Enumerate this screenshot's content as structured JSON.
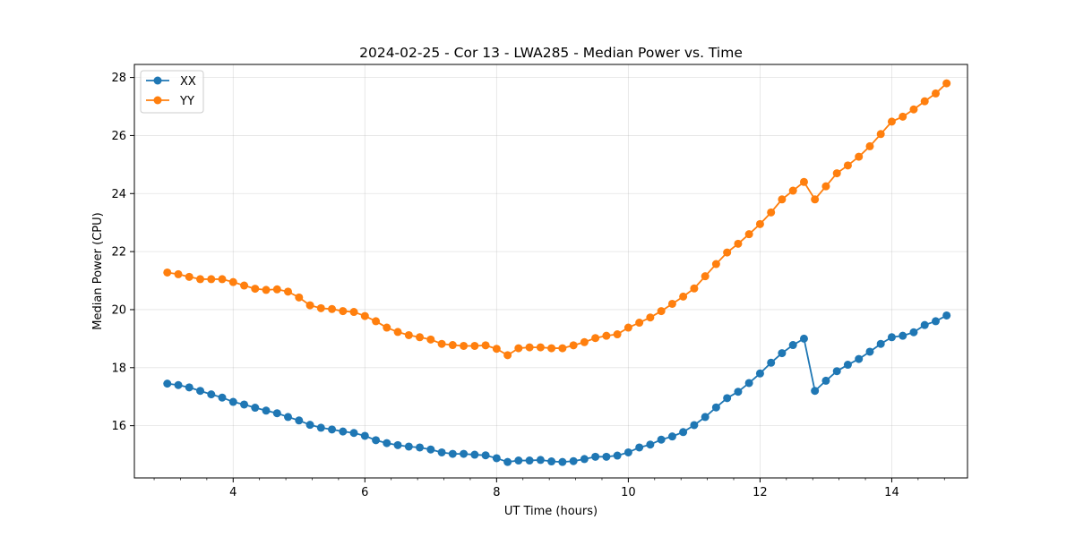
{
  "chart_data": {
    "type": "line",
    "title": "2024-02-25 - Cor 13 - LWA285 - Median Power vs. Time",
    "xlabel": "UT Time (hours)",
    "ylabel": "Median Power (CPU)",
    "xlim": [
      2.5,
      15.15
    ],
    "ylim": [
      14.2,
      28.45
    ],
    "xticks": [
      4,
      6,
      8,
      10,
      12,
      14
    ],
    "xtick_labels": [
      "4",
      "6",
      "8",
      "10",
      "12",
      "14"
    ],
    "yticks": [
      16,
      18,
      20,
      22,
      24,
      26,
      28
    ],
    "ytick_labels": [
      "16",
      "18",
      "20",
      "22",
      "24",
      "26",
      "28"
    ],
    "grid": true,
    "legend_position": "upper-left",
    "x": [
      3.0,
      3.167,
      3.333,
      3.5,
      3.667,
      3.833,
      4.0,
      4.167,
      4.333,
      4.5,
      4.667,
      4.833,
      5.0,
      5.167,
      5.333,
      5.5,
      5.667,
      5.833,
      6.0,
      6.167,
      6.333,
      6.5,
      6.667,
      6.833,
      7.0,
      7.167,
      7.333,
      7.5,
      7.667,
      7.833,
      8.0,
      8.167,
      8.333,
      8.5,
      8.667,
      8.833,
      9.0,
      9.167,
      9.333,
      9.5,
      9.667,
      9.833,
      10.0,
      10.167,
      10.333,
      10.5,
      10.667,
      10.833,
      11.0,
      11.167,
      11.333,
      11.5,
      11.667,
      11.833,
      12.0,
      12.167,
      12.333,
      12.5,
      12.667,
      12.833,
      13.0,
      13.167,
      13.333,
      13.5,
      13.667,
      13.833,
      14.0,
      14.167,
      14.333,
      14.5,
      14.667,
      14.833
    ],
    "series": [
      {
        "name": "XX",
        "color": "#1f77b4",
        "values": [
          17.45,
          17.4,
          17.32,
          17.2,
          17.08,
          16.97,
          16.82,
          16.73,
          16.62,
          16.52,
          16.43,
          16.3,
          16.18,
          16.03,
          15.93,
          15.87,
          15.8,
          15.75,
          15.65,
          15.5,
          15.4,
          15.33,
          15.28,
          15.25,
          15.18,
          15.08,
          15.03,
          15.03,
          15.0,
          14.98,
          14.88,
          14.75,
          14.8,
          14.8,
          14.82,
          14.77,
          14.75,
          14.78,
          14.85,
          14.93,
          14.93,
          14.97,
          15.08,
          15.25,
          15.35,
          15.52,
          15.63,
          15.78,
          16.02,
          16.3,
          16.63,
          16.95,
          17.17,
          17.47,
          17.8,
          18.17,
          18.5,
          18.78,
          19.0,
          17.2,
          17.55,
          17.88,
          18.1,
          18.3,
          18.55,
          18.82,
          19.05,
          19.1,
          19.22,
          19.47,
          19.6,
          19.8
        ]
      },
      {
        "name": "YY",
        "color": "#ff7f0e",
        "values": [
          21.28,
          21.22,
          21.13,
          21.05,
          21.05,
          21.05,
          20.95,
          20.83,
          20.72,
          20.68,
          20.7,
          20.62,
          20.42,
          20.15,
          20.05,
          20.02,
          19.95,
          19.92,
          19.78,
          19.6,
          19.38,
          19.23,
          19.12,
          19.05,
          18.97,
          18.82,
          18.78,
          18.75,
          18.75,
          18.77,
          18.65,
          18.43,
          18.67,
          18.7,
          18.7,
          18.67,
          18.67,
          18.77,
          18.88,
          19.02,
          19.1,
          19.15,
          19.38,
          19.55,
          19.73,
          19.95,
          20.2,
          20.45,
          20.73,
          21.15,
          21.57,
          21.97,
          22.27,
          22.6,
          22.95,
          23.35,
          23.8,
          24.1,
          24.4,
          23.8,
          24.25,
          24.7,
          24.97,
          25.27,
          25.63,
          26.05,
          26.48,
          26.65,
          26.9,
          27.18,
          27.45,
          27.8
        ]
      }
    ]
  }
}
